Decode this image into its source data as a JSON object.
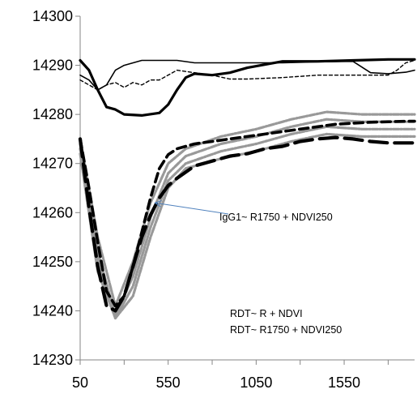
{
  "chart_data": {
    "type": "line",
    "title": "",
    "xlabel": "",
    "ylabel": "",
    "xlim": [
      50,
      1950
    ],
    "ylim": [
      14230,
      14300
    ],
    "x_ticks": [
      50,
      550,
      1050,
      1550
    ],
    "y_ticks": [
      14230,
      14240,
      14250,
      14260,
      14270,
      14280,
      14290,
      14300
    ],
    "grid": false,
    "legend": "none",
    "annotations": [
      {
        "text": "IgG1~ R1750 + NDVI250",
        "arrow": true,
        "arrow_target": [
          475,
          14262
        ]
      },
      {
        "text": "RDT~ R + NDVI"
      },
      {
        "text": "RDT~ R1750 + NDVI250"
      }
    ],
    "series": [
      {
        "style": "thin-solid",
        "color": "#000000",
        "x": [
          50,
          100,
          150,
          200,
          250,
          300,
          400,
          500,
          600,
          700,
          800,
          900,
          1000,
          1200,
          1400,
          1600,
          1700,
          1800,
          1900,
          1950
        ],
        "y": [
          14288,
          14287,
          14285,
          14286,
          14289,
          14290,
          14291,
          14291,
          14291,
          14290.5,
          14290.5,
          14290.5,
          14290.5,
          14290.5,
          14290.7,
          14290.8,
          14288.5,
          14288.3,
          14288.6,
          14289
        ]
      },
      {
        "style": "thin-dashed",
        "color": "#000000",
        "x": [
          50,
          100,
          150,
          200,
          250,
          300,
          350,
          400,
          450,
          500,
          600,
          700,
          800,
          900,
          1000,
          1200,
          1400,
          1600,
          1800,
          1850,
          1900,
          1950
        ],
        "y": [
          14287,
          14286,
          14285,
          14286,
          14286.5,
          14285.5,
          14286.5,
          14286,
          14287,
          14287,
          14289,
          14288.5,
          14288,
          14287.2,
          14287.2,
          14287.5,
          14288,
          14288,
          14288,
          14289,
          14290.5,
          14291
        ]
      },
      {
        "style": "thick-solid",
        "color": "#000000",
        "x": [
          50,
          100,
          150,
          200,
          250,
          300,
          400,
          500,
          550,
          600,
          650,
          700,
          800,
          900,
          1000,
          1200,
          1400,
          1600,
          1800,
          1950
        ],
        "y": [
          14291,
          14289,
          14285,
          14281.5,
          14281,
          14280,
          14279.8,
          14280.3,
          14282,
          14285,
          14287.5,
          14288.3,
          14288,
          14288.5,
          14289.5,
          14290.8,
          14290.8,
          14291,
          14291.2,
          14291.2
        ]
      },
      {
        "style": "gray-band",
        "color": "#999999",
        "x": [
          50,
          150,
          250,
          350,
          450,
          550,
          650,
          850,
          1050,
          1250,
          1450,
          1650,
          1950
        ],
        "y": [
          14275,
          14255,
          14241,
          14250,
          14262,
          14270,
          14273,
          14275.5,
          14277,
          14279,
          14280.5,
          14280,
          14280
        ]
      },
      {
        "style": "gray-band",
        "color": "#999999",
        "x": [
          50,
          150,
          250,
          350,
          450,
          550,
          650,
          850,
          1050,
          1250,
          1450,
          1650,
          1950
        ],
        "y": [
          14274,
          14252,
          14239,
          14247,
          14259,
          14268,
          14271.5,
          14274,
          14275.5,
          14277.5,
          14279,
          14278.5,
          14278.5
        ]
      },
      {
        "style": "gray-band",
        "color": "#999999",
        "x": [
          50,
          150,
          250,
          350,
          450,
          550,
          650,
          850,
          1050,
          1250,
          1450,
          1650,
          1950
        ],
        "y": [
          14273,
          14250,
          14238.5,
          14245,
          14257,
          14266.5,
          14270,
          14272.5,
          14274,
          14276,
          14277.5,
          14277,
          14277
        ]
      },
      {
        "style": "gray-band",
        "color": "#999999",
        "x": [
          50,
          150,
          250,
          350,
          450,
          550,
          650,
          850,
          1050,
          1250,
          1450,
          1650,
          1950
        ],
        "y": [
          14272,
          14248,
          14238.5,
          14243,
          14255,
          14265,
          14269,
          14271,
          14272.5,
          14274.5,
          14276,
          14275.5,
          14275.5
        ]
      },
      {
        "style": "thick-dashed",
        "color": "#000000",
        "x": [
          50,
          100,
          150,
          200,
          250,
          300,
          350,
          400,
          450,
          500,
          550,
          600,
          700,
          800,
          900,
          1000,
          1100,
          1200,
          1300,
          1400,
          1500,
          1600,
          1700,
          1800,
          1900,
          1950
        ],
        "y": [
          14275,
          14265,
          14254,
          14244,
          14241,
          14243,
          14249,
          14256,
          14263,
          14269,
          14271.8,
          14273,
          14274,
          14274.5,
          14275,
          14275.5,
          14276,
          14276.5,
          14277,
          14277.5,
          14278,
          14278.2,
          14278.4,
          14278.5,
          14278.6,
          14278.6
        ]
      },
      {
        "style": "thick-longdash",
        "color": "#000000",
        "x": [
          50,
          100,
          150,
          200,
          250,
          300,
          350,
          400,
          450,
          500,
          550,
          600,
          700,
          800,
          900,
          1000,
          1100,
          1200,
          1300,
          1400,
          1500,
          1600,
          1700,
          1800,
          1900,
          1950
        ],
        "y": [
          14275,
          14261,
          14249,
          14241,
          14240,
          14243,
          14249,
          14255,
          14259.5,
          14263,
          14265.5,
          14267,
          14269.5,
          14270.5,
          14271.5,
          14272,
          14273,
          14273.5,
          14274.5,
          14275,
          14275.3,
          14275,
          14274.5,
          14274.2,
          14274.2,
          14274.2
        ]
      }
    ]
  }
}
